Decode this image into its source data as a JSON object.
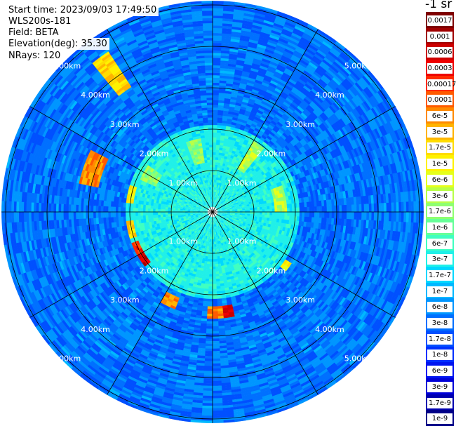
{
  "header": {
    "start_time": "Start time: 2023/09/03 17:49:50",
    "instrument": "WLS200s-181",
    "field": "Field: BETA",
    "elevation": "Elevation(deg): 35.30",
    "nrays": "NRays: 120"
  },
  "colorbar": {
    "units": "-1 sr",
    "labels": [
      "0.0017",
      "0.001",
      "0.0006",
      "0.0003",
      "0.00017",
      "0.0001",
      "6e-5",
      "3e-5",
      "1.7e-5",
      "1e-5",
      "6e-6",
      "3e-6",
      "1.7e-6",
      "1e-6",
      "6e-7",
      "3e-7",
      "1.7e-7",
      "1e-7",
      "6e-8",
      "3e-8",
      "1.7e-8",
      "1e-8",
      "6e-9",
      "3e-9",
      "1.7e-9",
      "1e-9"
    ],
    "colors": [
      "#7f0000",
      "#a00000",
      "#cc0000",
      "#ee0000",
      "#ff2a00",
      "#ff5a00",
      "#ff8a00",
      "#ffb400",
      "#ffdc00",
      "#fff200",
      "#e6ff1a",
      "#b8ff48",
      "#8eff70",
      "#66ff98",
      "#40ffc0",
      "#20f0e8",
      "#00d8ff",
      "#00b8ff",
      "#0096ff",
      "#0070ff",
      "#0050ff",
      "#0030ff",
      "#0014f0",
      "#0000d8",
      "#0000b0",
      "#000088"
    ]
  },
  "chart_data": {
    "type": "polar-ppi",
    "field": "BETA",
    "nrays": 120,
    "range_rings_km": [
      1,
      2,
      3,
      4,
      5
    ],
    "ring_labels": [
      "1.00km",
      "2.00km",
      "3.00km",
      "4.00km",
      "5.00km"
    ],
    "spokes_deg": [
      0,
      30,
      60,
      90,
      120,
      150,
      180,
      210,
      240,
      270,
      300,
      330
    ],
    "max_range_km": 5.1,
    "background": {
      "inner_km": 2.1,
      "inner_level": 15,
      "outer_level": 18
    },
    "echoes": [
      {
        "az": 325,
        "r": [
          3.6,
          4.6
        ],
        "half_width_deg": 3,
        "level": 8
      },
      {
        "az": 290,
        "r": [
          2.8,
          3.3
        ],
        "half_width_deg": 7,
        "level": 6
      },
      {
        "az": 258,
        "r": [
          1.9,
          2.1
        ],
        "half_width_deg": 5,
        "level": 8
      },
      {
        "az": 244,
        "r": [
          1.9,
          2.1
        ],
        "half_width_deg": 4,
        "level": 4
      },
      {
        "az": 236,
        "r": [
          1.9,
          2.1
        ],
        "half_width_deg": 4,
        "level": 2
      },
      {
        "az": 282,
        "r": [
          1.9,
          2.1
        ],
        "half_width_deg": 5,
        "level": 9
      },
      {
        "az": 205,
        "r": [
          2.2,
          2.5
        ],
        "half_width_deg": 4,
        "level": 6
      },
      {
        "az": 178,
        "r": [
          2.3,
          2.6
        ],
        "half_width_deg": 5,
        "level": 6
      },
      {
        "az": 170,
        "r": [
          2.3,
          2.6
        ],
        "half_width_deg": 3,
        "level": 3
      },
      {
        "az": 126,
        "r": [
          2.1,
          2.3
        ],
        "half_width_deg": 2,
        "level": 9
      },
      {
        "az": 35,
        "r": [
          1.2,
          2.0
        ],
        "half_width_deg": 4,
        "level": 11
      },
      {
        "az": 80,
        "r": [
          1.5,
          1.8
        ],
        "half_width_deg": 10,
        "level": 11
      },
      {
        "az": 345,
        "r": [
          1.2,
          1.8
        ],
        "half_width_deg": 6,
        "level": 12
      },
      {
        "az": 300,
        "r": [
          1.5,
          1.9
        ],
        "half_width_deg": 5,
        "level": 12
      }
    ]
  }
}
